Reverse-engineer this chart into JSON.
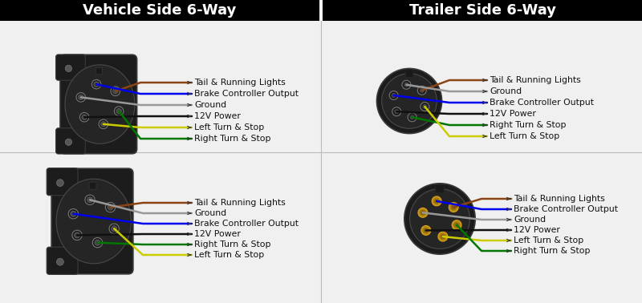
{
  "title_left": "Vehicle Side 6-Way",
  "title_right": "Trailer Side 6-Way",
  "bg_color": "#f0f0f0",
  "title_bg": "#000000",
  "title_fg": "#ffffff",
  "title_fontsize": 13,
  "label_fontsize": 7.8,
  "top_left_labels": [
    {
      "text": "Tail & Running Lights",
      "color": "#8B4513"
    },
    {
      "text": "Brake Controller Output",
      "color": "#0000EE"
    },
    {
      "text": "Ground",
      "color": "#999999"
    },
    {
      "text": "12V Power",
      "color": "#111111"
    },
    {
      "text": "Left Turn & Stop",
      "color": "#CCCC00"
    },
    {
      "text": "Right Turn & Stop",
      "color": "#007700"
    }
  ],
  "top_right_labels": [
    {
      "text": "Tail & Running Lights",
      "color": "#8B4513"
    },
    {
      "text": "Ground",
      "color": "#999999"
    },
    {
      "text": "Brake Controller Output",
      "color": "#0000EE"
    },
    {
      "text": "12V Power",
      "color": "#111111"
    },
    {
      "text": "Right Turn & Stop",
      "color": "#007700"
    },
    {
      "text": "Left Turn & Stop",
      "color": "#CCCC00"
    }
  ],
  "bot_left_labels": [
    {
      "text": "Tail & Running Lights",
      "color": "#8B4513"
    },
    {
      "text": "Ground",
      "color": "#999999"
    },
    {
      "text": "Brake Controller Output",
      "color": "#0000EE"
    },
    {
      "text": "12V Power",
      "color": "#111111"
    },
    {
      "text": "Right Turn & Stop",
      "color": "#007700"
    },
    {
      "text": "Left Turn & Stop",
      "color": "#CCCC00"
    }
  ],
  "bot_right_labels": [
    {
      "text": "Tail & Running Lights",
      "color": "#8B4513"
    },
    {
      "text": "Brake Controller Output",
      "color": "#0000EE"
    },
    {
      "text": "Ground",
      "color": "#999999"
    },
    {
      "text": "12V Power",
      "color": "#111111"
    },
    {
      "text": "Left Turn & Stop",
      "color": "#CCCC00"
    },
    {
      "text": "Right Turn & Stop",
      "color": "#007700"
    }
  ]
}
